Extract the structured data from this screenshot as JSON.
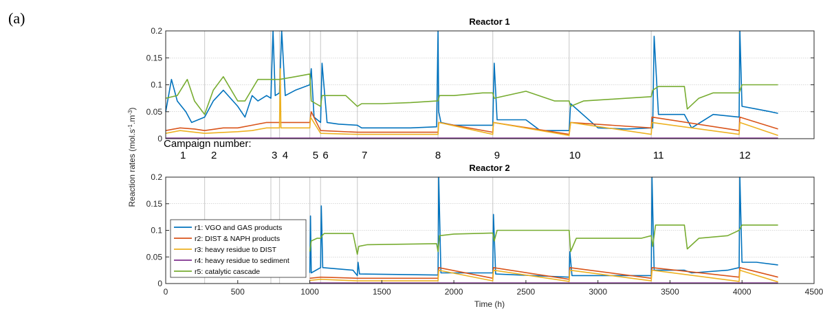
{
  "panel_label": "(a)",
  "campaign_label": "Campaign number:",
  "campaigns": [
    {
      "label": "1",
      "x": 120
    },
    {
      "label": "2",
      "x": 335
    },
    {
      "label": "3",
      "x": 755
    },
    {
      "label": "4",
      "x": 830
    },
    {
      "label": "5",
      "x": 1040
    },
    {
      "label": "6",
      "x": 1110
    },
    {
      "label": "7",
      "x": 1380
    },
    {
      "label": "8",
      "x": 1890
    },
    {
      "label": "9",
      "x": 2300
    },
    {
      "label": "10",
      "x": 2840
    },
    {
      "label": "11",
      "x": 3420
    },
    {
      "label": "12",
      "x": 4020
    }
  ],
  "campaign_boundaries": [
    270,
    730,
    790,
    1000,
    1075,
    1330,
    1890,
    2270,
    2800,
    3370,
    3980
  ],
  "chart_data": [
    {
      "type": "line",
      "title": "Reactor 1",
      "xlim": [
        0,
        4500
      ],
      "ylim": [
        0,
        0.2
      ],
      "yticks": [
        0,
        0.05,
        0.1,
        0.15,
        0.2
      ],
      "ytick_labels": [
        "0",
        "0.05",
        "0.1",
        "0.15",
        "0.2"
      ],
      "grid": "horizontal",
      "series": [
        {
          "key": "r1",
          "color": "#0072BD",
          "x": [
            0,
            40,
            80,
            140,
            180,
            270,
            330,
            400,
            500,
            550,
            600,
            640,
            700,
            730,
            745,
            760,
            790,
            805,
            830,
            900,
            1000,
            1010,
            1030,
            1075,
            1085,
            1120,
            1200,
            1330,
            1360,
            1450,
            1700,
            1880,
            1890,
            1895,
            1910,
            2000,
            2200,
            2270,
            2280,
            2300,
            2500,
            2600,
            2800,
            2810,
            3000,
            3200,
            3370,
            3380,
            3390,
            3420,
            3600,
            3650,
            3800,
            3980,
            3985,
            4000,
            4100,
            4200,
            4250
          ],
          "y": [
            0.05,
            0.11,
            0.07,
            0.05,
            0.03,
            0.04,
            0.07,
            0.09,
            0.06,
            0.04,
            0.08,
            0.07,
            0.08,
            0.075,
            0.2,
            0.08,
            0.085,
            0.2,
            0.08,
            0.09,
            0.1,
            0.13,
            0.04,
            0.03,
            0.14,
            0.03,
            0.027,
            0.025,
            0.02,
            0.02,
            0.02,
            0.022,
            0.2,
            0.05,
            0.03,
            0.025,
            0.025,
            0.025,
            0.14,
            0.035,
            0.035,
            0.015,
            0.015,
            0.065,
            0.02,
            0.018,
            0.02,
            0.02,
            0.19,
            0.045,
            0.045,
            0.02,
            0.045,
            0.04,
            0.2,
            0.06,
            0.055,
            0.05,
            0.047
          ]
        },
        {
          "key": "r2",
          "color": "#D95319",
          "x": [
            0,
            100,
            200,
            270,
            400,
            500,
            600,
            700,
            790,
            900,
            1000,
            1010,
            1075,
            1330,
            1890,
            1895,
            2270,
            2275,
            2800,
            2810,
            3370,
            3375,
            3980,
            3985,
            4250
          ],
          "y": [
            0.015,
            0.02,
            0.018,
            0.015,
            0.02,
            0.02,
            0.025,
            0.03,
            0.03,
            0.03,
            0.03,
            0.05,
            0.015,
            0.012,
            0.012,
            0.03,
            0.012,
            0.03,
            0.008,
            0.03,
            0.02,
            0.04,
            0.015,
            0.04,
            0.018
          ]
        },
        {
          "key": "r3",
          "color": "#EDB120",
          "x": [
            0,
            100,
            200,
            270,
            500,
            600,
            700,
            790,
            795,
            800,
            1000,
            1005,
            1075,
            1330,
            1890,
            1895,
            2270,
            2275,
            2800,
            2810,
            3370,
            3375,
            3980,
            3985,
            4250
          ],
          "y": [
            0.01,
            0.015,
            0.012,
            0.01,
            0.013,
            0.015,
            0.02,
            0.02,
            0.13,
            0.02,
            0.02,
            0.04,
            0.01,
            0.008,
            0.008,
            0.03,
            0.008,
            0.03,
            0.006,
            0.03,
            0.008,
            0.03,
            0.008,
            0.03,
            0.006
          ]
        },
        {
          "key": "r4",
          "color": "#7E2F8E",
          "x": [
            0,
            4250
          ],
          "y": [
            0.001,
            0.001
          ]
        },
        {
          "key": "r5",
          "color": "#77AC30",
          "x": [
            0,
            80,
            150,
            200,
            270,
            330,
            400,
            500,
            550,
            640,
            700,
            730,
            760,
            790,
            900,
            1000,
            1010,
            1075,
            1085,
            1250,
            1330,
            1360,
            1500,
            1700,
            1880,
            1890,
            1900,
            2000,
            2200,
            2270,
            2280,
            2500,
            2700,
            2800,
            2810,
            2900,
            3200,
            3370,
            3380,
            3420,
            3600,
            3620,
            3700,
            3800,
            3980,
            4000,
            4250
          ],
          "y": [
            0.075,
            0.08,
            0.11,
            0.07,
            0.045,
            0.09,
            0.115,
            0.07,
            0.07,
            0.11,
            0.11,
            0.11,
            0.11,
            0.11,
            0.115,
            0.12,
            0.07,
            0.06,
            0.08,
            0.08,
            0.06,
            0.065,
            0.065,
            0.067,
            0.07,
            0.07,
            0.08,
            0.08,
            0.085,
            0.085,
            0.075,
            0.088,
            0.07,
            0.07,
            0.06,
            0.07,
            0.075,
            0.078,
            0.09,
            0.097,
            0.097,
            0.055,
            0.075,
            0.085,
            0.085,
            0.1,
            0.1
          ]
        }
      ]
    },
    {
      "type": "line",
      "title": "Reactor 2",
      "xlabel": "Time (h)",
      "xlim": [
        0,
        4500
      ],
      "xticks": [
        0,
        500,
        1000,
        1500,
        2000,
        2500,
        3000,
        3500,
        4000,
        4500
      ],
      "xtick_labels": [
        "0",
        "500",
        "1000",
        "1500",
        "2000",
        "2500",
        "3000",
        "3500",
        "4000",
        "4500"
      ],
      "ylim": [
        0,
        0.2
      ],
      "yticks": [
        0,
        0.05,
        0.1,
        0.15,
        0.2
      ],
      "ytick_labels": [
        "0",
        "0.05",
        "0.1",
        "0.15",
        "0.2"
      ],
      "grid": "horizontal",
      "legend_position": "lower-left",
      "series": [
        {
          "key": "r1",
          "color": "#0072BD",
          "x": [
            1000,
            1005,
            1010,
            1075,
            1080,
            1090,
            1300,
            1330,
            1335,
            1345,
            1880,
            1890,
            1895,
            1910,
            2270,
            2275,
            2290,
            2800,
            2805,
            2820,
            3370,
            3375,
            3390,
            3600,
            3650,
            3900,
            3980,
            3985,
            4000,
            4100,
            4250
          ],
          "y": [
            0.02,
            0.127,
            0.02,
            0.03,
            0.146,
            0.03,
            0.025,
            0.015,
            0.04,
            0.018,
            0.016,
            0.016,
            0.2,
            0.02,
            0.02,
            0.13,
            0.018,
            0.012,
            0.06,
            0.015,
            0.015,
            0.2,
            0.025,
            0.025,
            0.02,
            0.025,
            0.03,
            0.2,
            0.04,
            0.04,
            0.035
          ]
        },
        {
          "key": "r2",
          "color": "#D95319",
          "x": [
            1000,
            1075,
            1330,
            1890,
            1895,
            2270,
            2275,
            2800,
            2805,
            3370,
            3375,
            3980,
            3985,
            4250
          ],
          "y": [
            0.01,
            0.012,
            0.01,
            0.01,
            0.03,
            0.01,
            0.03,
            0.008,
            0.03,
            0.01,
            0.03,
            0.012,
            0.03,
            0.012
          ]
        },
        {
          "key": "r3",
          "color": "#EDB120",
          "x": [
            1000,
            1075,
            1330,
            1890,
            1895,
            2270,
            2275,
            2800,
            2805,
            3370,
            3375,
            3980,
            3985,
            4250
          ],
          "y": [
            0.006,
            0.008,
            0.005,
            0.005,
            0.025,
            0.005,
            0.025,
            0.004,
            0.025,
            0.005,
            0.025,
            0.004,
            0.025,
            0.003
          ]
        },
        {
          "key": "r4",
          "color": "#7E2F8E",
          "x": [
            1000,
            4250
          ],
          "y": [
            0.001,
            0.001
          ]
        },
        {
          "key": "r5",
          "color": "#77AC30",
          "x": [
            1000,
            1010,
            1050,
            1075,
            1085,
            1100,
            1300,
            1330,
            1340,
            1400,
            1880,
            1890,
            1900,
            2000,
            2270,
            2280,
            2300,
            2800,
            2810,
            2850,
            3300,
            3370,
            3380,
            3400,
            3600,
            3620,
            3700,
            3900,
            3980,
            4000,
            4250
          ],
          "y": [
            0.06,
            0.08,
            0.085,
            0.085,
            0.09,
            0.094,
            0.094,
            0.055,
            0.07,
            0.073,
            0.075,
            0.06,
            0.09,
            0.093,
            0.095,
            0.08,
            0.1,
            0.1,
            0.06,
            0.085,
            0.085,
            0.09,
            0.07,
            0.11,
            0.11,
            0.065,
            0.085,
            0.09,
            0.1,
            0.11,
            0.11
          ]
        }
      ]
    }
  ],
  "shared_ylabel": "Reaction rates (mol.s",
  "ylabel_sup1": "-1",
  "ylabel_mid": ".m",
  "ylabel_sup2": "-3",
  "ylabel_end": ")",
  "legend": [
    {
      "key": "r1",
      "label": "r1: VGO and GAS products",
      "color": "#0072BD"
    },
    {
      "key": "r2",
      "label": "r2: DIST & NAPH products",
      "color": "#D95319"
    },
    {
      "key": "r3",
      "label": "r3: heavy residue to DIST",
      "color": "#EDB120"
    },
    {
      "key": "r4",
      "label": "r4: heavy residue to sediment",
      "color": "#7E2F8E"
    },
    {
      "key": "r5",
      "label": "r5: catalytic cascade",
      "color": "#77AC30"
    }
  ]
}
